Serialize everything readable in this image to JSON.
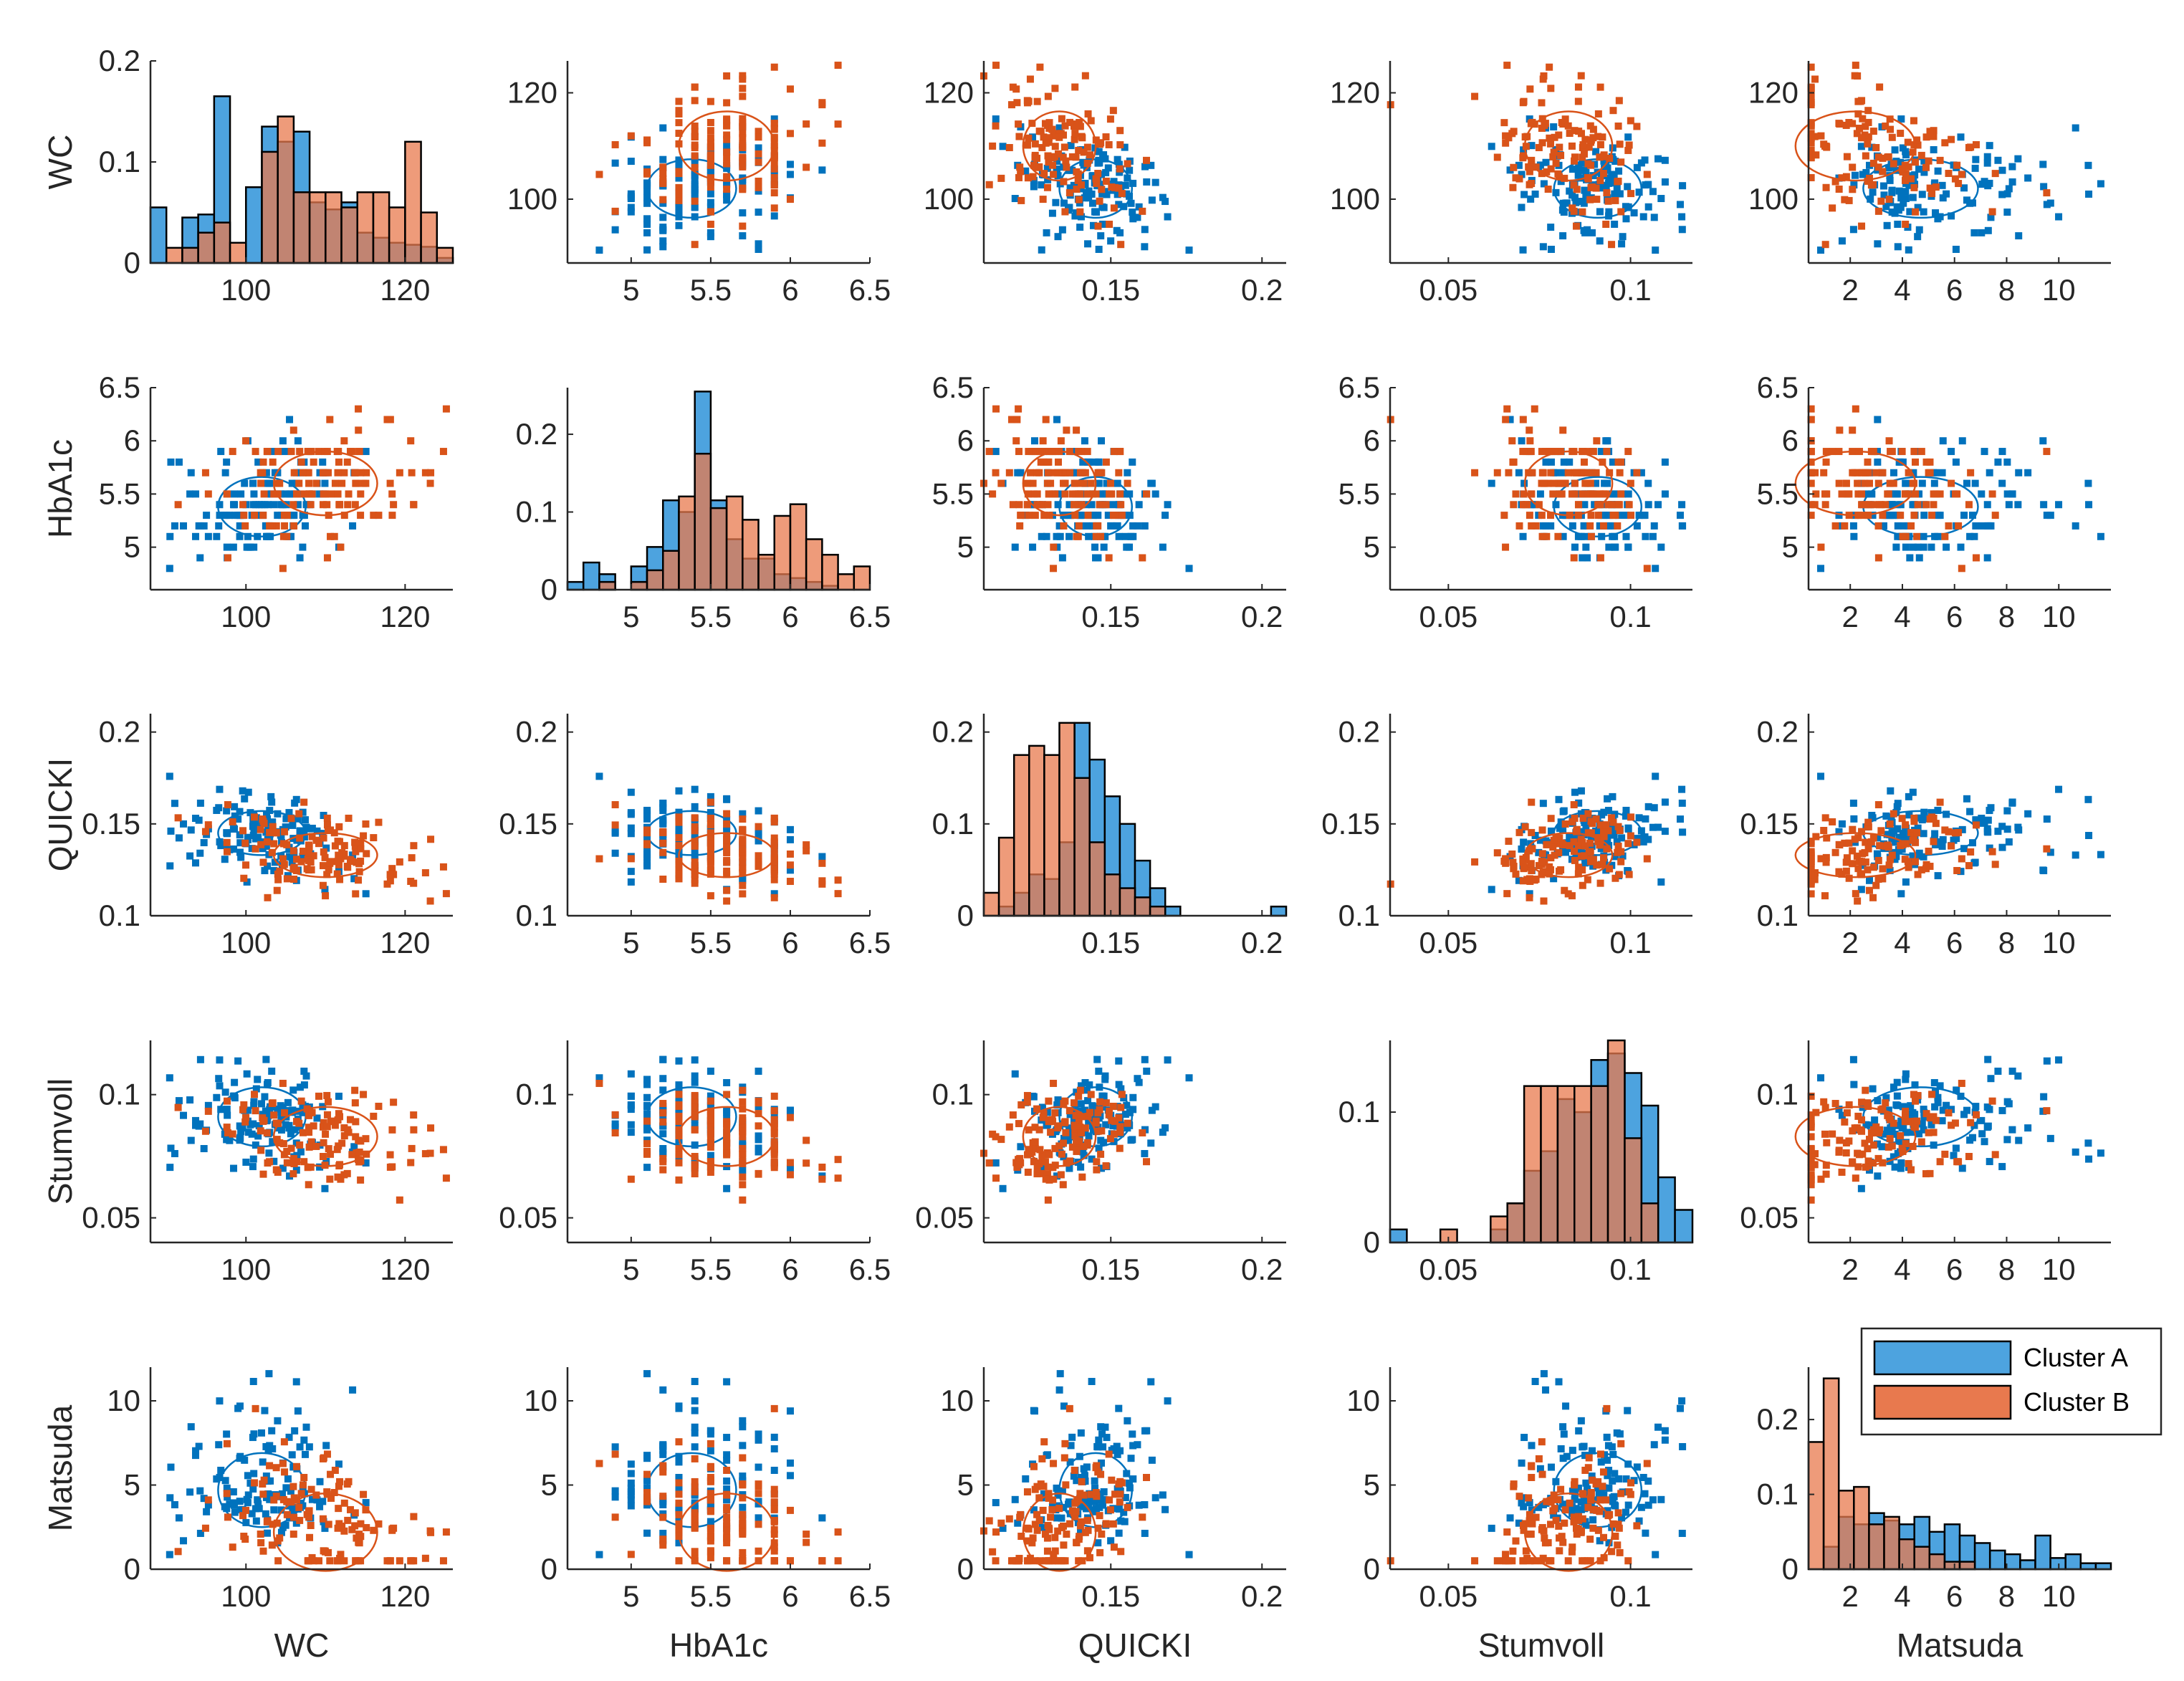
{
  "chart_data": {
    "type": "scatter",
    "title": "",
    "variables": [
      "WC",
      "HbA1c",
      "QUICKI",
      "Stumvoll",
      "Matsuda"
    ],
    "series_colors": {
      "Cluster A": "#0072BD",
      "Cluster B": "#D95319"
    },
    "hist_colors": {
      "Cluster A": "#4DA3DF",
      "Cluster B": "#E8794E"
    },
    "ranges": {
      "WC": [
        88,
        126
      ],
      "HbA1c": [
        4.6,
        6.5
      ],
      "QUICKI": [
        0.108,
        0.208
      ],
      "Stumvoll": [
        0.034,
        0.117
      ],
      "Matsuda": [
        0.4,
        12
      ]
    },
    "ticks": {
      "WC": [
        {
          "v": 100,
          "t": "100"
        },
        {
          "v": 120,
          "t": "120"
        }
      ],
      "HbA1c": [
        {
          "v": 5,
          "t": "5"
        },
        {
          "v": 5.5,
          "t": "5.5"
        },
        {
          "v": 6,
          "t": "6"
        },
        {
          "v": 6.5,
          "t": "6.5"
        }
      ],
      "QUICKI": [
        {
          "v": 0.15,
          "t": "0.15"
        },
        {
          "v": 0.2,
          "t": "0.2"
        }
      ],
      "Stumvoll": [
        {
          "v": 0.05,
          "t": "0.05"
        },
        {
          "v": 0.1,
          "t": "0.1"
        }
      ],
      "Matsuda": [
        {
          "v": 2,
          "t": "2"
        },
        {
          "v": 4,
          "t": "4"
        },
        {
          "v": 6,
          "t": "6"
        },
        {
          "v": 8,
          "t": "8"
        },
        {
          "v": 10,
          "t": "10"
        }
      ]
    },
    "yranges": {
      "WC": [
        88,
        126
      ],
      "HbA1c": [
        4.6,
        6.5
      ],
      "QUICKI": [
        0.1,
        0.21
      ],
      "Stumvoll": [
        0.04,
        0.122
      ],
      "Matsuda": [
        0,
        12
      ]
    },
    "yticks": {
      "WC": [
        {
          "v": 100,
          "t": "100"
        },
        {
          "v": 120,
          "t": "120"
        }
      ],
      "HbA1c": [
        {
          "v": 5,
          "t": "5"
        },
        {
          "v": 5.5,
          "t": "5.5"
        },
        {
          "v": 6,
          "t": "6"
        },
        {
          "v": 6.5,
          "t": "6.5"
        }
      ],
      "QUICKI": [
        {
          "v": 0.1,
          "t": "0.1"
        },
        {
          "v": 0.15,
          "t": "0.15"
        },
        {
          "v": 0.2,
          "t": "0.2"
        }
      ],
      "Stumvoll": [
        {
          "v": 0.05,
          "t": "0.05"
        },
        {
          "v": 0.1,
          "t": "0.1"
        }
      ],
      "Matsuda": [
        {
          "v": 0,
          "t": "0"
        },
        {
          "v": 5,
          "t": "5"
        },
        {
          "v": 10,
          "t": "10"
        }
      ]
    },
    "cluster_centers": {
      "Cluster A": {
        "WC": 102,
        "HbA1c": 5.38,
        "QUICKI": 0.145,
        "Stumvoll": 0.091,
        "Matsuda": 4.7
      },
      "Cluster B": {
        "WC": 110,
        "HbA1c": 5.6,
        "QUICKI": 0.133,
        "Stumvoll": 0.083,
        "Matsuda": 2.2
      }
    },
    "cluster_spread": {
      "Cluster A": {
        "WC": 5.5,
        "HbA1c": 0.28,
        "QUICKI": 0.012,
        "Stumvoll": 0.012,
        "Matsuda": 2.2
      },
      "Cluster B": {
        "WC": 6.5,
        "HbA1c": 0.3,
        "QUICKI": 0.012,
        "Stumvoll": 0.012,
        "Matsuda": 2.3
      }
    },
    "diagonal_histograms": {
      "WC": {
        "ylim": [
          0,
          0.2
        ],
        "yticks": [
          {
            "v": 0,
            "t": "0"
          },
          {
            "v": 0.1,
            "t": "0.1"
          },
          {
            "v": 0.2,
            "t": "0.2"
          }
        ],
        "bin_edges": [
          88,
          90,
          92,
          94,
          96,
          98,
          100,
          102,
          104,
          106,
          108,
          110,
          112,
          114,
          116,
          118,
          120,
          122,
          124,
          126
        ],
        "Cluster A": [
          0.055,
          0.0,
          0.045,
          0.048,
          0.165,
          0.0,
          0.075,
          0.135,
          0.12,
          0.13,
          0.06,
          0.053,
          0.06,
          0.03,
          0.025,
          0.02,
          0.018,
          0.016,
          0.005
        ],
        "Cluster B": [
          0.0,
          0.015,
          0.015,
          0.03,
          0.04,
          0.02,
          0.0,
          0.11,
          0.145,
          0.07,
          0.07,
          0.07,
          0.055,
          0.07,
          0.07,
          0.055,
          0.12,
          0.05,
          0.015
        ]
      },
      "HbA1c": {
        "ylim": [
          0,
          0.26
        ],
        "yticks": [
          {
            "v": 0,
            "t": "0"
          },
          {
            "v": 0.1,
            "t": "0.1"
          },
          {
            "v": 0.2,
            "t": "0.2"
          }
        ],
        "bin_edges": [
          4.6,
          4.7,
          4.8,
          4.9,
          5.0,
          5.1,
          5.2,
          5.3,
          5.4,
          5.5,
          5.6,
          5.7,
          5.8,
          5.9,
          6.0,
          6.1,
          6.2,
          6.3,
          6.4,
          6.5
        ],
        "Cluster A": [
          0.01,
          0.035,
          0.02,
          0.0,
          0.03,
          0.055,
          0.115,
          0.1,
          0.255,
          0.115,
          0.065,
          0.04,
          0.04,
          0.02,
          0.015,
          0.01,
          0.005,
          0.0,
          0.0
        ],
        "Cluster B": [
          0.0,
          0.0,
          0.01,
          0.0,
          0.01,
          0.025,
          0.05,
          0.12,
          0.175,
          0.105,
          0.12,
          0.09,
          0.045,
          0.095,
          0.11,
          0.065,
          0.045,
          0.02,
          0.03
        ]
      },
      "QUICKI": {
        "ylim": [
          0,
          0.22
        ],
        "yticks": [
          {
            "v": 0,
            "t": "0"
          },
          {
            "v": 0.1,
            "t": "0.1"
          },
          {
            "v": 0.2,
            "t": "0.2"
          }
        ],
        "bin_edges": [
          0.108,
          0.113,
          0.118,
          0.123,
          0.128,
          0.133,
          0.138,
          0.143,
          0.148,
          0.153,
          0.158,
          0.163,
          0.168,
          0.173,
          0.178,
          0.183,
          0.188,
          0.193,
          0.198,
          0.203,
          0.208
        ],
        "Cluster A": [
          0.0,
          0.01,
          0.025,
          0.045,
          0.04,
          0.08,
          0.21,
          0.17,
          0.13,
          0.1,
          0.06,
          0.03,
          0.01,
          0.0,
          0.0,
          0.0,
          0.0,
          0.0,
          0.0,
          0.01
        ],
        "Cluster B": [
          0.025,
          0.085,
          0.175,
          0.185,
          0.175,
          0.21,
          0.15,
          0.08,
          0.045,
          0.03,
          0.02,
          0.01,
          0.0,
          0.0,
          0.0,
          0.0,
          0.0,
          0.0,
          0.0,
          0.0
        ]
      },
      "Stumvoll": {
        "ylim": [
          0,
          0.155
        ],
        "yticks": [
          {
            "v": 0,
            "t": "0"
          },
          {
            "v": 0.1,
            "t": "0.1"
          }
        ],
        "bin_edges": [
          0.034,
          0.0386,
          0.0432,
          0.0478,
          0.0524,
          0.057,
          0.0616,
          0.0662,
          0.0708,
          0.0754,
          0.08,
          0.0846,
          0.0892,
          0.0938,
          0.0984,
          0.103,
          0.1076,
          0.1122,
          0.117
        ],
        "Cluster A": [
          0.01,
          0.0,
          0.0,
          0.0,
          0.0,
          0.0,
          0.01,
          0.03,
          0.055,
          0.07,
          0.11,
          0.1,
          0.14,
          0.145,
          0.13,
          0.105,
          0.05,
          0.025
        ],
        "Cluster B": [
          0.0,
          0.0,
          0.0,
          0.01,
          0.0,
          0.0,
          0.02,
          0.03,
          0.12,
          0.12,
          0.12,
          0.12,
          0.12,
          0.155,
          0.08,
          0.03,
          0.0,
          0.0
        ]
      },
      "Matsuda": {
        "ylim": [
          0,
          0.27
        ],
        "yticks": [
          {
            "v": 0,
            "t": "0"
          },
          {
            "v": 0.1,
            "t": "0.1"
          },
          {
            "v": 0.2,
            "t": "0.2"
          }
        ],
        "bin_edges": [
          0.4,
          0.98,
          1.56,
          2.14,
          2.72,
          3.3,
          3.88,
          4.46,
          5.04,
          5.62,
          6.2,
          6.78,
          7.36,
          7.94,
          8.52,
          9.1,
          9.68,
          10.26,
          10.84,
          11.42,
          12.0
        ],
        "Cluster A": [
          0.0,
          0.03,
          0.07,
          0.06,
          0.075,
          0.065,
          0.06,
          0.07,
          0.05,
          0.06,
          0.045,
          0.035,
          0.025,
          0.02,
          0.012,
          0.045,
          0.015,
          0.02,
          0.008,
          0.008
        ],
        "Cluster B": [
          0.17,
          0.255,
          0.105,
          0.11,
          0.06,
          0.07,
          0.04,
          0.03,
          0.02,
          0.01,
          0.01,
          0.0,
          0.0,
          0.0,
          0.0,
          0.0,
          0.0,
          0.0,
          0.0,
          0.0
        ]
      }
    },
    "legend": {
      "position": "inside-top-right-of-last-panel",
      "entries": [
        {
          "name": "Cluster A",
          "hist_color": "#4DA3DF"
        },
        {
          "name": "Cluster B",
          "hist_color": "#E8794E"
        }
      ]
    },
    "points_per_cluster": 130
  }
}
